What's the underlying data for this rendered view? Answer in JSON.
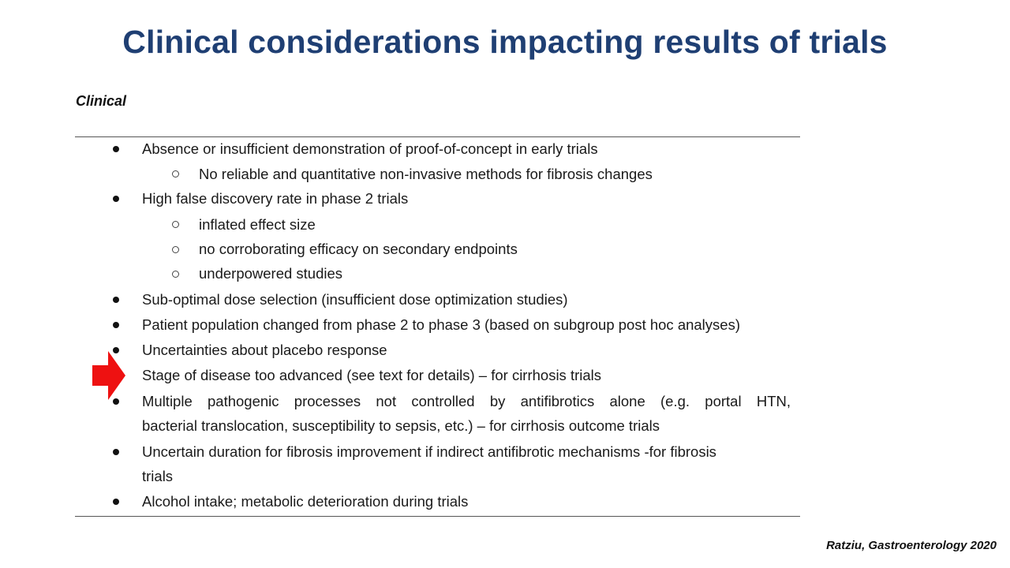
{
  "slide": {
    "title": "Clinical considerations impacting results of trials",
    "section_label": "Clinical",
    "citation": "Ratziu, Gastroenterology 2020",
    "accent_color": "#1f3f73",
    "arrow_color": "#ee1111"
  },
  "items": {
    "i1": "Absence or insufficient demonstration of proof-of-concept in early trials",
    "i1_sub1": "No reliable and quantitative non-invasive methods for fibrosis changes",
    "i2": "High false discovery rate in phase 2 trials",
    "i2_sub1": "inflated effect size",
    "i2_sub2": "no corroborating efficacy on secondary endpoints",
    "i2_sub3": "underpowered studies",
    "i3": "Sub-optimal dose selection (insufficient dose optimization studies)",
    "i4": "Patient population changed from phase 2 to phase 3 (based on subgroup post hoc analyses)",
    "i5": "Uncertainties about placebo response",
    "i6": "Stage of disease too advanced (see text for details) – for cirrhosis trials",
    "i7_line1": "Multiple pathogenic processes not controlled by antifibrotics alone (e.g. portal HTN,",
    "i7_line2": "bacterial translocation, susceptibility to sepsis, etc.) – for cirrhosis outcome trials",
    "i8_line1": "Uncertain duration for fibrosis improvement if indirect antifibrotic mechanisms -for fibrosis",
    "i8_line2": "trials",
    "i9": "Alcohol intake; metabolic deterioration during trials"
  }
}
